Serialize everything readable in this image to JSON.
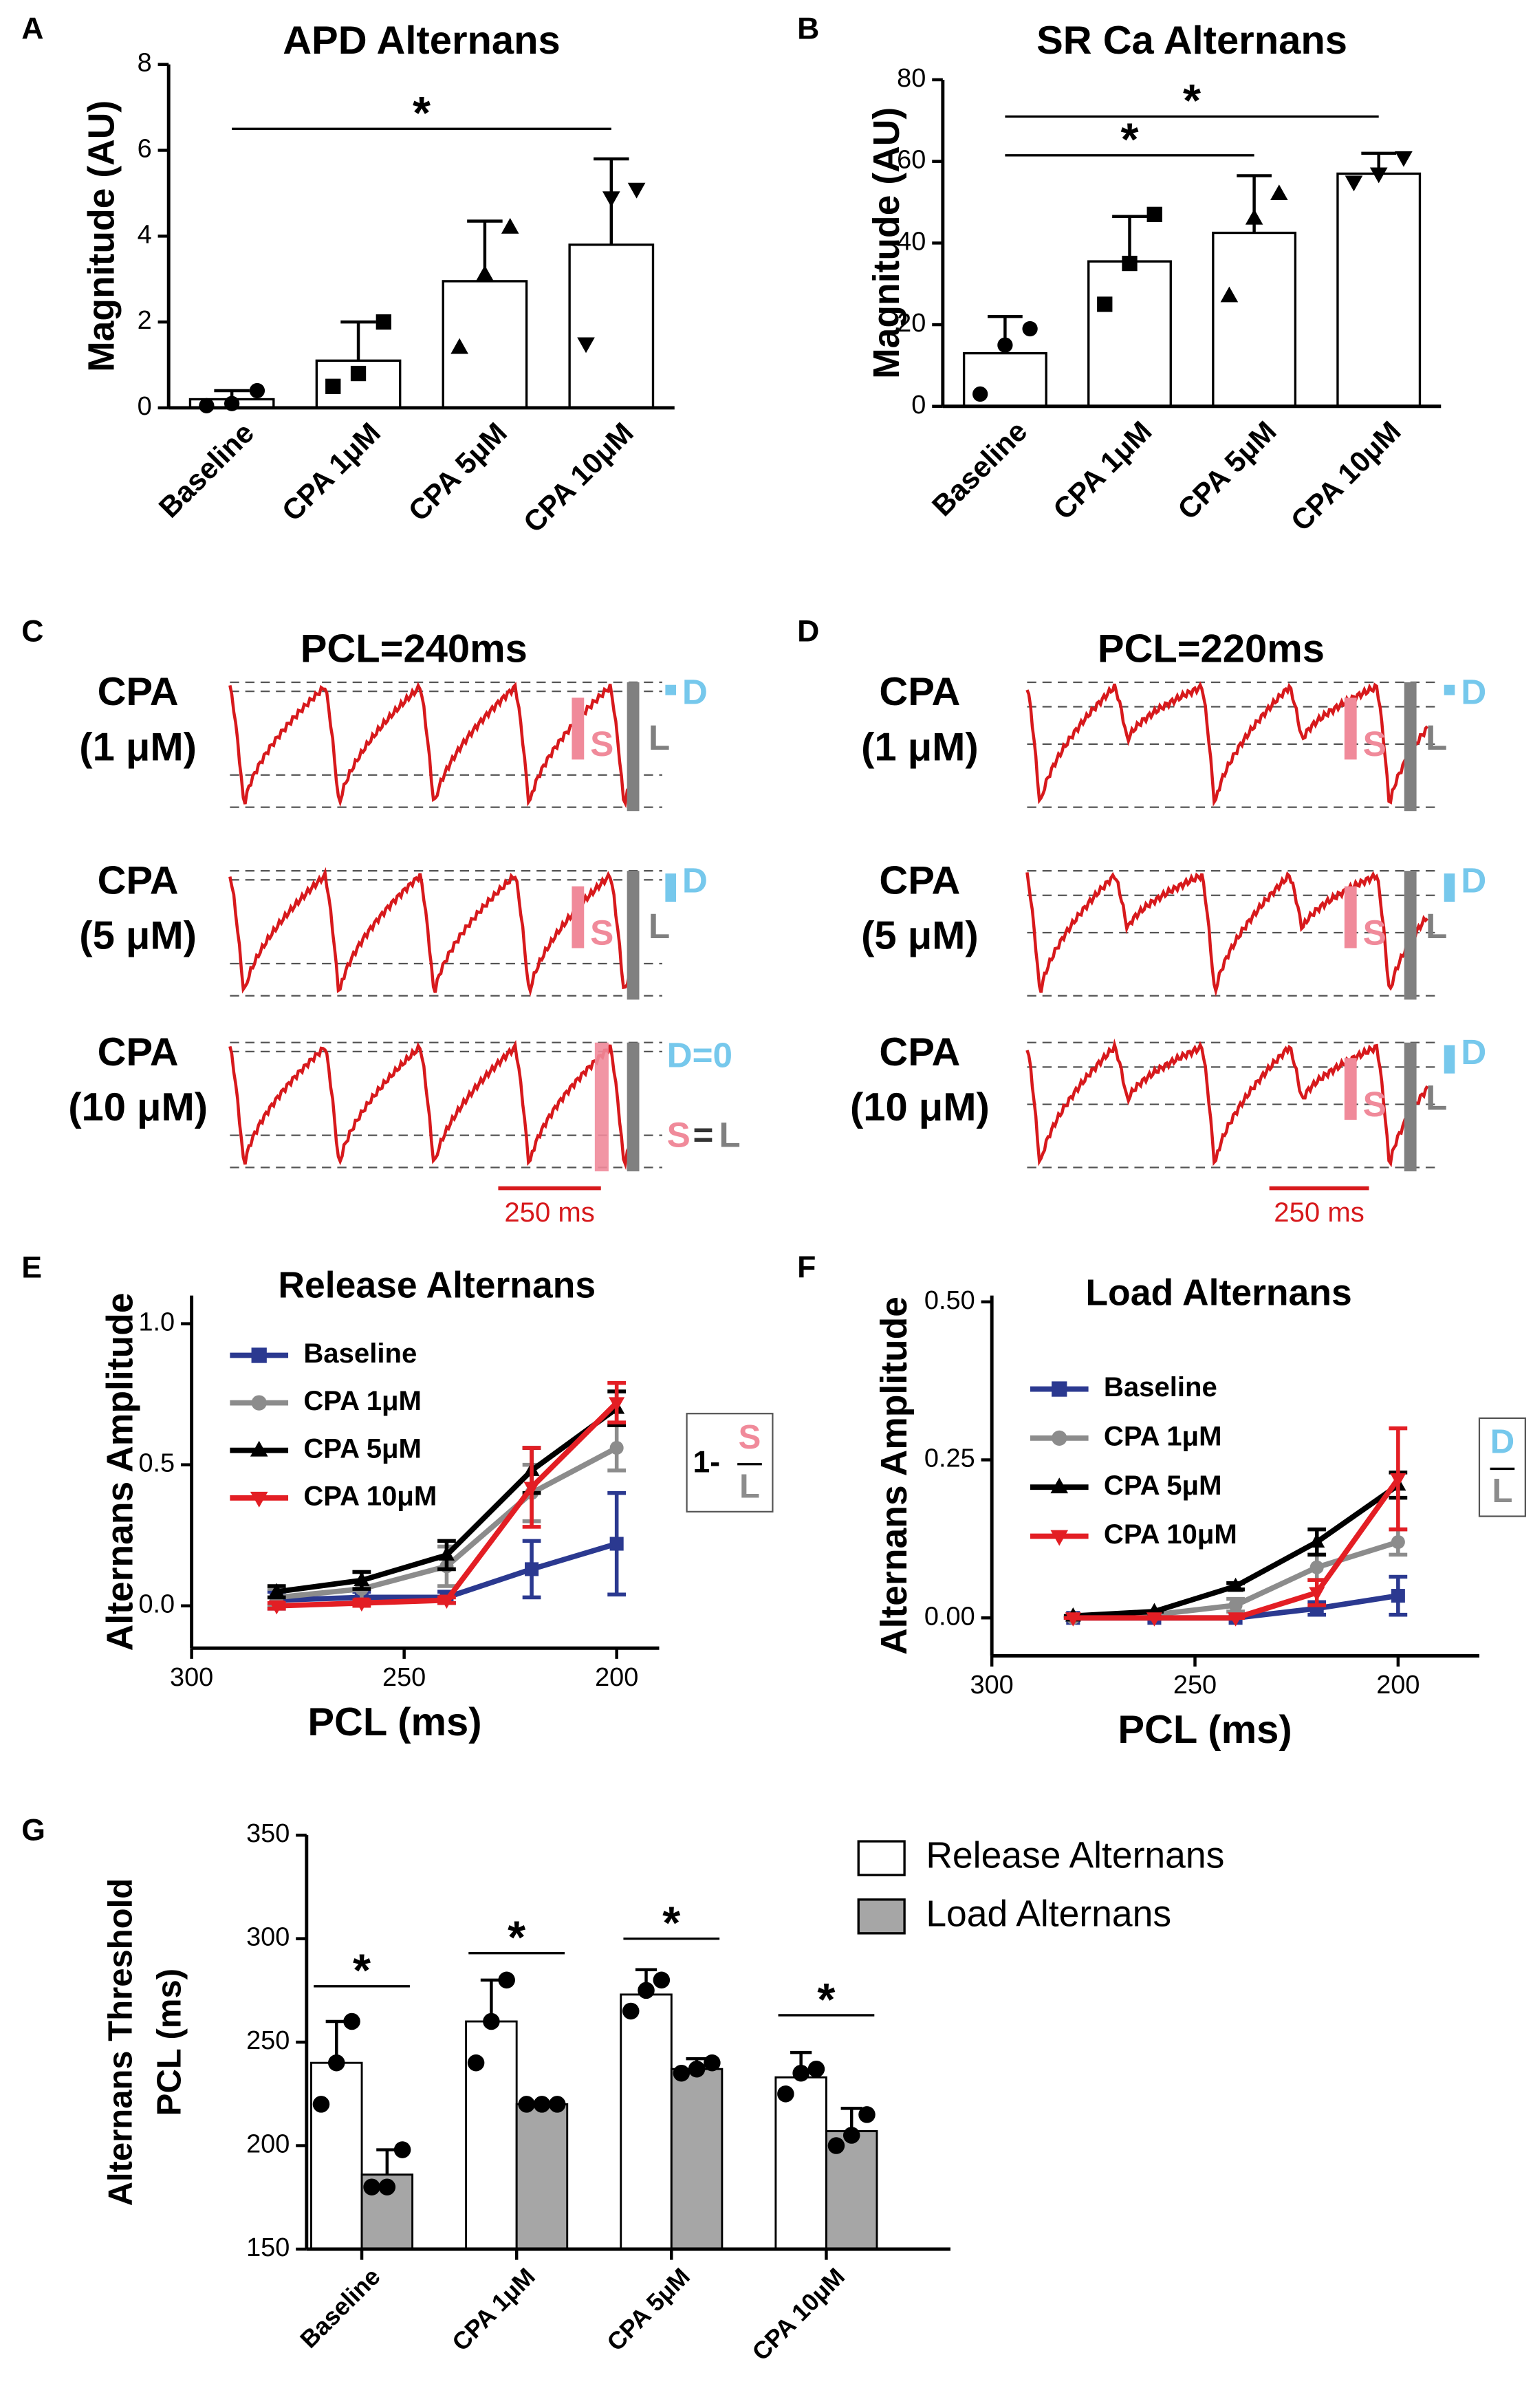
{
  "chart_data": [
    {
      "panel": "A",
      "type": "bar",
      "title": "APD Alternans",
      "ylabel": "Magnitude (AU)",
      "categories": [
        "Baseline",
        "CPA 1μM",
        "CPA 5μM",
        "CPA 10μM"
      ],
      "values": [
        0.2,
        1.1,
        2.95,
        3.8
      ],
      "errors": [
        0.2,
        0.9,
        1.4,
        2.0
      ],
      "points": [
        [
          0.05,
          0.1,
          0.4
        ],
        [
          0.5,
          0.8,
          2.0
        ],
        [
          1.4,
          3.1,
          4.2
        ],
        [
          1.5,
          4.9,
          5.1
        ]
      ],
      "markers": [
        "circle",
        "square",
        "triangle",
        "triangle-down"
      ],
      "color": "#ffffff",
      "ylim": [
        0,
        8
      ],
      "yticks": [
        0,
        2,
        4,
        6,
        8
      ],
      "significance": [
        {
          "from": 0,
          "to": 3,
          "y": 6.5,
          "label": "*"
        }
      ]
    },
    {
      "panel": "B",
      "type": "bar",
      "title": "SR Ca Alternans",
      "ylabel": "Magnitude (AU)",
      "categories": [
        "Baseline",
        "CPA 1μM",
        "CPA 5μM",
        "CPA 10μM"
      ],
      "values": [
        13,
        35.5,
        42.5,
        57
      ],
      "errors": [
        9,
        11,
        14,
        5
      ],
      "points": [
        [
          3,
          15,
          19
        ],
        [
          25,
          35,
          47
        ],
        [
          27,
          46,
          52
        ],
        [
          55,
          57,
          61
        ]
      ],
      "markers": [
        "circle",
        "square",
        "triangle",
        "triangle-down"
      ],
      "color": "#ffffff",
      "ylim": [
        0,
        80
      ],
      "yticks": [
        0,
        20,
        40,
        60,
        80
      ],
      "significance": [
        {
          "from": 0,
          "to": 2,
          "y": 61.5,
          "label": "*"
        },
        {
          "from": 0,
          "to": 3,
          "y": 71,
          "label": "*"
        }
      ]
    },
    {
      "panel": "C",
      "type": "traces",
      "title": "PCL=240ms",
      "trace_color": "#d7191c",
      "rows": [
        {
          "label": [
            "CPA",
            "(1 μM)"
          ],
          "annotations": [
            {
              "text": "D",
              "color": "#76c8ec"
            },
            {
              "text": "S",
              "color": "#f08a9a"
            },
            {
              "text": "L",
              "color": "#808080"
            }
          ]
        },
        {
          "label": [
            "CPA",
            "(5 μM)"
          ],
          "annotations": [
            {
              "text": "D",
              "color": "#76c8ec"
            },
            {
              "text": "S",
              "color": "#f08a9a"
            },
            {
              "text": "L",
              "color": "#808080"
            }
          ]
        },
        {
          "label": [
            "CPA",
            "(10 μM)"
          ],
          "annotations": [
            {
              "text": "D=0",
              "color": "#76c8ec"
            },
            {
              "text": "S",
              "color": "#f08a9a"
            },
            {
              "text": "=",
              "color": "#333333"
            },
            {
              "text": "L",
              "color": "#808080"
            }
          ]
        }
      ],
      "scale_bar": "250 ms"
    },
    {
      "panel": "D",
      "type": "traces",
      "title": "PCL=220ms",
      "trace_color": "#d7191c",
      "rows": [
        {
          "label": [
            "CPA",
            "(1 μM)"
          ],
          "annotations": [
            {
              "text": "D",
              "color": "#76c8ec"
            },
            {
              "text": "S",
              "color": "#f08a9a"
            },
            {
              "text": "L",
              "color": "#808080"
            }
          ]
        },
        {
          "label": [
            "CPA",
            "(5 μM)"
          ],
          "annotations": [
            {
              "text": "D",
              "color": "#76c8ec"
            },
            {
              "text": "S",
              "color": "#f08a9a"
            },
            {
              "text": "L",
              "color": "#808080"
            }
          ]
        },
        {
          "label": [
            "CPA",
            "(10 μM)"
          ],
          "annotations": [
            {
              "text": "D",
              "color": "#76c8ec"
            },
            {
              "text": "S",
              "color": "#f08a9a"
            },
            {
              "text": "L",
              "color": "#808080"
            }
          ]
        }
      ],
      "scale_bar": "250 ms"
    },
    {
      "panel": "E",
      "type": "line",
      "title": "Release Alternans",
      "xlabel": "PCL (ms)",
      "ylabel": "Alternans Amplitude",
      "x": [
        280,
        260,
        240,
        220,
        200
      ],
      "xlim": [
        300,
        190
      ],
      "xticks": [
        300,
        250,
        200
      ],
      "ylim": [
        -0.15,
        1.1
      ],
      "yticks": [
        {
          "value": 0,
          "label": "0.0"
        },
        {
          "value": 0.5,
          "label": "0.5"
        },
        {
          "value": 1,
          "label": "1.0"
        }
      ],
      "legend": "upper left",
      "series": [
        {
          "name": "Baseline",
          "color": "#2b3990",
          "marker": "square",
          "values": [
            0.02,
            0.03,
            0.03,
            0.13,
            0.22
          ],
          "errors": [
            0.03,
            0.02,
            0.02,
            0.1,
            0.18
          ]
        },
        {
          "name": "CPA 1μM",
          "color": "#8c8c8c",
          "marker": "circle",
          "values": [
            0.03,
            0.06,
            0.14,
            0.4,
            0.56
          ],
          "errors": [
            0.03,
            0.06,
            0.07,
            0.1,
            0.08
          ]
        },
        {
          "name": "CPA 5μM",
          "color": "#000000",
          "marker": "triangle",
          "values": [
            0.05,
            0.09,
            0.18,
            0.48,
            0.7
          ],
          "errors": [
            0.02,
            0.03,
            0.05,
            0.08,
            0.06
          ]
        },
        {
          "name": "CPA 10μM",
          "color": "#e31e24",
          "marker": "triangle-down",
          "values": [
            0.0,
            0.01,
            0.02,
            0.42,
            0.72
          ],
          "errors": [
            0.01,
            0.01,
            0.01,
            0.14,
            0.07
          ]
        }
      ],
      "formula": {
        "prefix": "1-",
        "numerator": "S",
        "denominator": "L",
        "numerator_color": "#f08a9a",
        "denominator_color": "#8c8c8c"
      }
    },
    {
      "panel": "F",
      "type": "line",
      "title": "Load Alternans",
      "xlabel": "PCL (ms)",
      "ylabel": "Alternans Amplitude",
      "x": [
        280,
        260,
        240,
        220,
        200
      ],
      "xlim": [
        300,
        180
      ],
      "xticks": [
        300,
        250,
        200
      ],
      "ylim": [
        -0.06,
        0.51
      ],
      "yticks": [
        {
          "value": 0,
          "label": "0.00"
        },
        {
          "value": 0.25,
          "label": "0.25"
        },
        {
          "value": 0.5,
          "label": "0.50"
        }
      ],
      "legend": "upper left",
      "series": [
        {
          "name": "Baseline",
          "color": "#2b3990",
          "marker": "square",
          "values": [
            0,
            0,
            0,
            0.015,
            0.035
          ],
          "errors": [
            0,
            0,
            0,
            0.01,
            0.03
          ]
        },
        {
          "name": "CPA 1μM",
          "color": "#8c8c8c",
          "marker": "circle",
          "values": [
            0,
            0.005,
            0.02,
            0.08,
            0.12
          ],
          "errors": [
            0,
            0,
            0.01,
            0.02,
            0.02
          ]
        },
        {
          "name": "CPA 5μM",
          "color": "#000000",
          "marker": "triangle",
          "values": [
            0.003,
            0.01,
            0.05,
            0.12,
            0.21
          ],
          "errors": [
            0,
            0,
            0.005,
            0.02,
            0.02
          ]
        },
        {
          "name": "CPA 10μM",
          "color": "#e31e24",
          "marker": "triangle-down",
          "values": [
            0,
            0,
            0,
            0.04,
            0.22
          ],
          "errors": [
            0,
            0,
            0,
            0.02,
            0.08
          ]
        }
      ],
      "formula": {
        "numerator": "D",
        "denominator": "L",
        "numerator_color": "#76c8ec",
        "denominator_color": "#8c8c8c"
      }
    },
    {
      "panel": "G",
      "type": "grouped-bar",
      "ylabel": [
        "Alternans Threshold",
        "PCL (ms)"
      ],
      "categories": [
        "Baseline",
        "CPA 1μM",
        "CPA 5μM",
        "CPA 10μM"
      ],
      "ylim": [
        150,
        350
      ],
      "yticks": [
        150,
        200,
        250,
        300,
        350
      ],
      "series": [
        {
          "name": "Release Alternans",
          "color": "#ffffff",
          "values": [
            240,
            260,
            273,
            233
          ],
          "errors": [
            20,
            20,
            12,
            12
          ],
          "points": [
            [
              220,
              240,
              260
            ],
            [
              240,
              260,
              280
            ],
            [
              265,
              275,
              280
            ],
            [
              225,
              235,
              237
            ]
          ]
        },
        {
          "name": "Load Alternans",
          "color": "#a6a6a6",
          "values": [
            186,
            220,
            237,
            207
          ],
          "errors": [
            12,
            0,
            5,
            11
          ],
          "points": [
            [
              180,
              180,
              198
            ],
            [
              220,
              220,
              220
            ],
            [
              235,
              237,
              240
            ],
            [
              200,
              205,
              215
            ]
          ]
        }
      ],
      "significance": [
        {
          "group": 0,
          "y": 277,
          "label": "*"
        },
        {
          "group": 1,
          "y": 293,
          "label": "*"
        },
        {
          "group": 2,
          "y": 300,
          "label": "*"
        },
        {
          "group": 3,
          "y": 263,
          "label": "*"
        }
      ]
    }
  ]
}
